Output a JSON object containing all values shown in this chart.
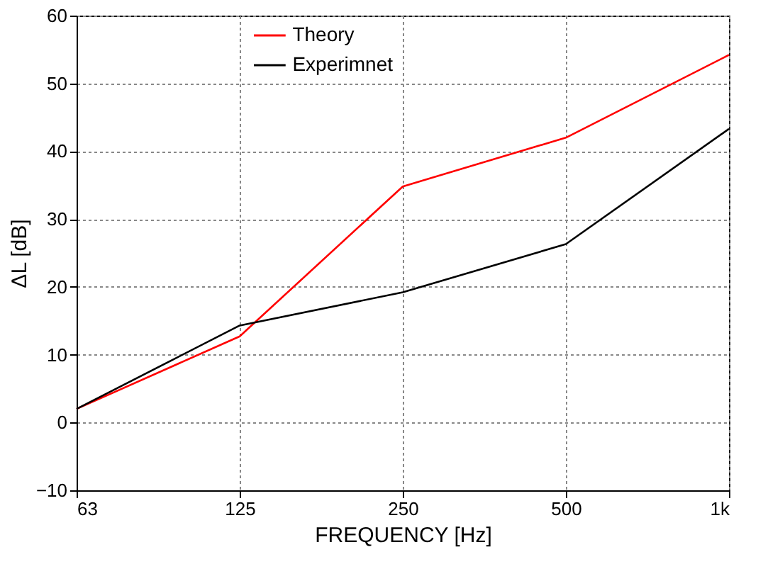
{
  "chart_data": {
    "type": "line",
    "xlabel": "FREQUENCY [Hz]",
    "ylabel": "ΔL [dB]",
    "categories": [
      "63",
      "125",
      "250",
      "500",
      "1k"
    ],
    "series": [
      {
        "name": "Theory",
        "color": "#ff0000",
        "values": [
          2,
          12.7,
          34.8,
          42,
          54.2
        ]
      },
      {
        "name": "Experimnet",
        "color": "#000000",
        "values": [
          2,
          14.3,
          19.2,
          26.3,
          43.3
        ]
      }
    ],
    "ylim": [
      -10,
      60
    ],
    "yticks": [
      -10,
      0,
      10,
      20,
      30,
      40,
      50,
      60
    ],
    "grid": true,
    "legend": "top",
    "marker": "none",
    "line_style": "solid"
  }
}
